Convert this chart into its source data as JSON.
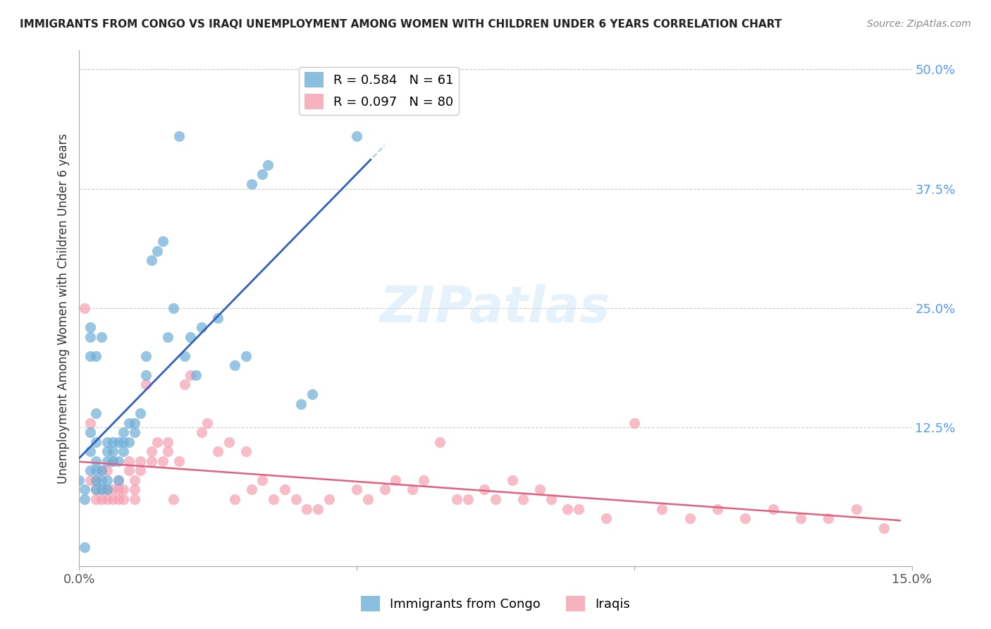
{
  "title": "IMMIGRANTS FROM CONGO VS IRAQI UNEMPLOYMENT AMONG WOMEN WITH CHILDREN UNDER 6 YEARS CORRELATION CHART",
  "source": "Source: ZipAtlas.com",
  "xlabel_bottom": "",
  "ylabel": "Unemployment Among Women with Children Under 6 years",
  "xlim": [
    0.0,
    0.15
  ],
  "ylim": [
    -0.02,
    0.52
  ],
  "xticks": [
    0.0,
    0.05,
    0.1,
    0.15
  ],
  "xtick_labels": [
    "0.0%",
    "",
    "",
    "15.0%"
  ],
  "ytick_labels_right": [
    "50.0%",
    "37.5%",
    "25.0%",
    "12.5%"
  ],
  "ytick_positions_right": [
    0.5,
    0.375,
    0.25,
    0.125
  ],
  "watermark": "ZIPatlas",
  "congo_color": "#6dafd7",
  "iraq_color": "#f4a0b0",
  "congo_R": 0.584,
  "congo_N": 61,
  "iraq_R": 0.097,
  "iraq_N": 80,
  "congo_trend_color": "#3060c0",
  "iraq_trend_color": "#e06080",
  "congo_trend_dashed_color": "#aac8e8",
  "congo_x": [
    0.0,
    0.001,
    0.001,
    0.001,
    0.002,
    0.002,
    0.002,
    0.002,
    0.002,
    0.002,
    0.003,
    0.003,
    0.003,
    0.003,
    0.003,
    0.003,
    0.003,
    0.004,
    0.004,
    0.004,
    0.004,
    0.005,
    0.005,
    0.005,
    0.005,
    0.005,
    0.006,
    0.006,
    0.006,
    0.007,
    0.007,
    0.007,
    0.008,
    0.008,
    0.008,
    0.009,
    0.009,
    0.01,
    0.01,
    0.011,
    0.012,
    0.012,
    0.013,
    0.014,
    0.015,
    0.016,
    0.017,
    0.018,
    0.019,
    0.02,
    0.021,
    0.022,
    0.025,
    0.028,
    0.03,
    0.031,
    0.033,
    0.034,
    0.04,
    0.042,
    0.05
  ],
  "congo_y": [
    0.07,
    0.0,
    0.06,
    0.05,
    0.08,
    0.12,
    0.1,
    0.22,
    0.23,
    0.2,
    0.06,
    0.07,
    0.08,
    0.09,
    0.11,
    0.14,
    0.2,
    0.06,
    0.07,
    0.08,
    0.22,
    0.06,
    0.07,
    0.09,
    0.1,
    0.11,
    0.09,
    0.1,
    0.11,
    0.07,
    0.09,
    0.11,
    0.1,
    0.11,
    0.12,
    0.11,
    0.13,
    0.12,
    0.13,
    0.14,
    0.18,
    0.2,
    0.3,
    0.31,
    0.32,
    0.22,
    0.25,
    0.43,
    0.2,
    0.22,
    0.18,
    0.23,
    0.24,
    0.19,
    0.2,
    0.38,
    0.39,
    0.4,
    0.15,
    0.16,
    0.43
  ],
  "iraq_x": [
    0.001,
    0.002,
    0.002,
    0.003,
    0.003,
    0.003,
    0.004,
    0.004,
    0.004,
    0.005,
    0.005,
    0.005,
    0.006,
    0.006,
    0.006,
    0.007,
    0.007,
    0.007,
    0.008,
    0.008,
    0.009,
    0.009,
    0.01,
    0.01,
    0.01,
    0.011,
    0.011,
    0.012,
    0.013,
    0.013,
    0.014,
    0.015,
    0.016,
    0.016,
    0.017,
    0.018,
    0.019,
    0.02,
    0.022,
    0.023,
    0.025,
    0.027,
    0.028,
    0.03,
    0.031,
    0.033,
    0.035,
    0.037,
    0.039,
    0.041,
    0.043,
    0.045,
    0.05,
    0.052,
    0.055,
    0.057,
    0.06,
    0.062,
    0.065,
    0.068,
    0.07,
    0.073,
    0.075,
    0.078,
    0.08,
    0.083,
    0.085,
    0.088,
    0.09,
    0.095,
    0.1,
    0.105,
    0.11,
    0.115,
    0.12,
    0.125,
    0.13,
    0.135,
    0.14,
    0.145
  ],
  "iraq_y": [
    0.25,
    0.13,
    0.07,
    0.05,
    0.06,
    0.07,
    0.05,
    0.06,
    0.08,
    0.05,
    0.06,
    0.08,
    0.05,
    0.06,
    0.09,
    0.05,
    0.06,
    0.07,
    0.05,
    0.06,
    0.08,
    0.09,
    0.05,
    0.06,
    0.07,
    0.08,
    0.09,
    0.17,
    0.09,
    0.1,
    0.11,
    0.09,
    0.1,
    0.11,
    0.05,
    0.09,
    0.17,
    0.18,
    0.12,
    0.13,
    0.1,
    0.11,
    0.05,
    0.1,
    0.06,
    0.07,
    0.05,
    0.06,
    0.05,
    0.04,
    0.04,
    0.05,
    0.06,
    0.05,
    0.06,
    0.07,
    0.06,
    0.07,
    0.11,
    0.05,
    0.05,
    0.06,
    0.05,
    0.07,
    0.05,
    0.06,
    0.05,
    0.04,
    0.04,
    0.03,
    0.13,
    0.04,
    0.03,
    0.04,
    0.03,
    0.04,
    0.03,
    0.03,
    0.04,
    0.02
  ]
}
